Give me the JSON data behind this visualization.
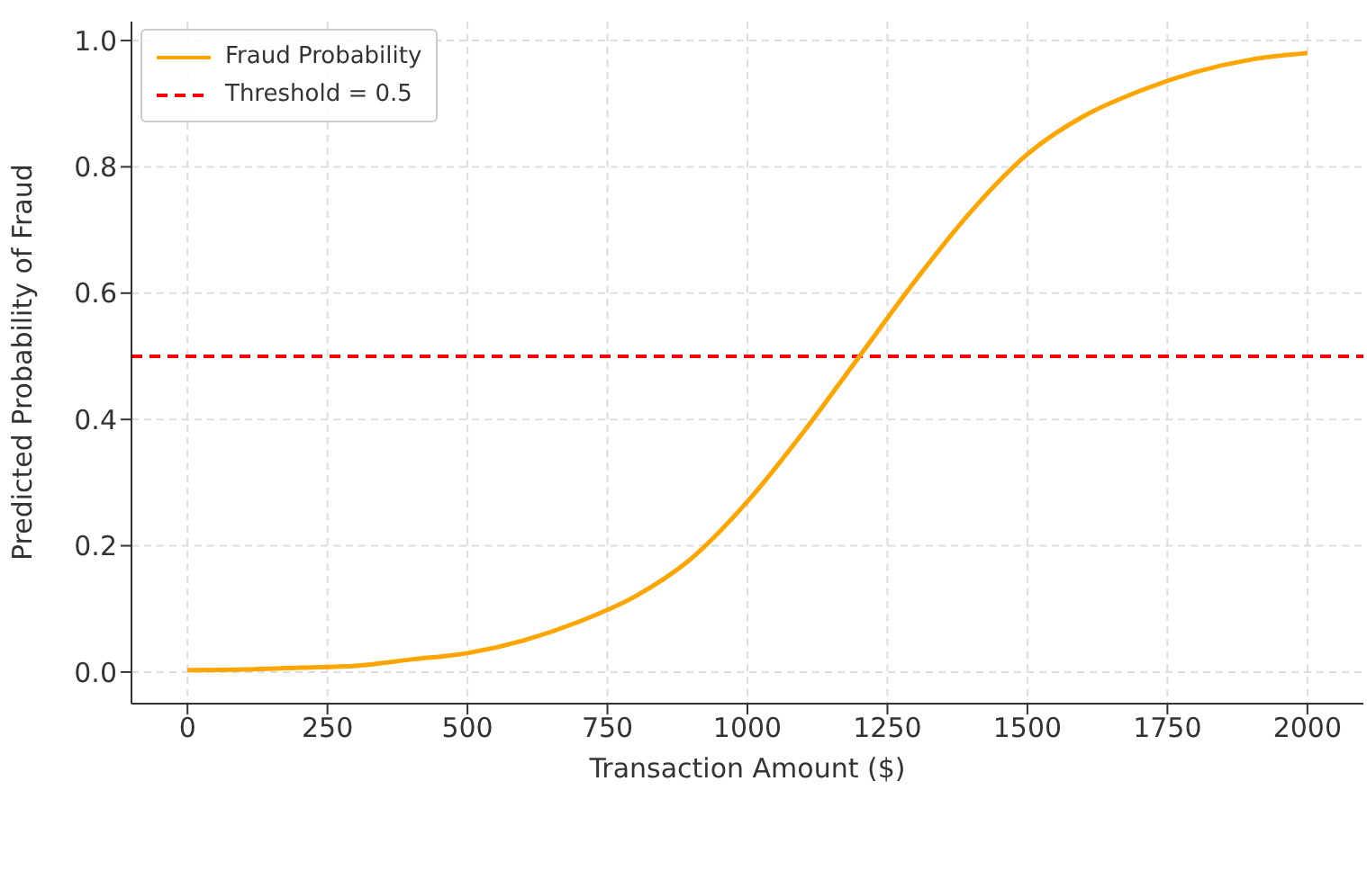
{
  "chart_data": {
    "type": "line",
    "xlabel": "Transaction Amount ($)",
    "ylabel": "Predicted Probability of Fraud",
    "x": [
      0,
      100,
      200,
      300,
      400,
      500,
      600,
      700,
      800,
      900,
      1000,
      1100,
      1200,
      1300,
      1400,
      1500,
      1600,
      1700,
      1800,
      1900,
      2000
    ],
    "series": [
      {
        "name": "Fraud Probability",
        "color": "#ffa500",
        "values": [
          0.003,
          0.004,
          0.007,
          0.01,
          0.02,
          0.03,
          0.05,
          0.08,
          0.12,
          0.18,
          0.27,
          0.38,
          0.5,
          0.62,
          0.73,
          0.82,
          0.88,
          0.92,
          0.95,
          0.97,
          0.98
        ]
      }
    ],
    "ref_lines": [
      {
        "axis": "y",
        "value": 0.5,
        "label": "Threshold = 0.5",
        "color": "#ff0000",
        "line_style": "dashed"
      }
    ],
    "xlim": [
      -100,
      2100
    ],
    "xticks": [
      0,
      250,
      500,
      750,
      1000,
      1250,
      1500,
      1750,
      2000
    ],
    "ylim": [
      -0.05,
      1.03
    ],
    "yticks": [
      {
        "value": 0,
        "label": "0.0"
      },
      {
        "value": 0.2,
        "label": "0.2"
      },
      {
        "value": 0.4,
        "label": "0.4"
      },
      {
        "value": 0.6,
        "label": "0.6"
      },
      {
        "value": 0.8,
        "label": "0.8"
      },
      {
        "value": 1,
        "label": "1.0"
      }
    ],
    "grid": true,
    "legend": "top left",
    "marker": "none",
    "line_style": "solid"
  }
}
